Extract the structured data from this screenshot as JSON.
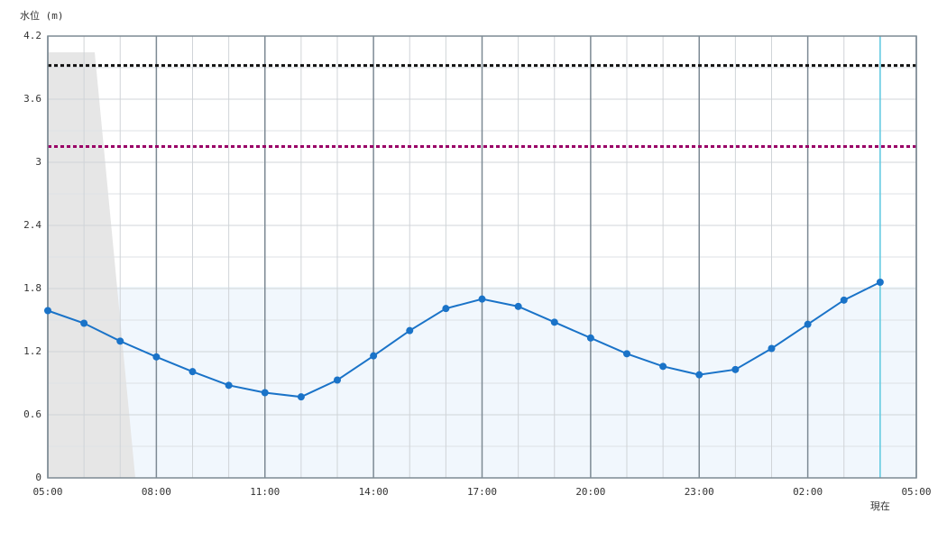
{
  "chart_data": {
    "type": "line",
    "y_label": "水位 (m)",
    "categories": [
      "05:00",
      null,
      null,
      "08:00",
      null,
      null,
      "11:00",
      null,
      null,
      "14:00",
      null,
      null,
      "17:00",
      null,
      null,
      "20:00",
      null,
      null,
      "23:00",
      null,
      null,
      "02:00",
      null,
      null,
      "05:00"
    ],
    "series": [
      {
        "color": "#1a73c8",
        "values": [
          1.59,
          1.47,
          1.3,
          1.15,
          1.01,
          0.88,
          0.81,
          0.77,
          0.93,
          1.16,
          1.4,
          1.61,
          1.7,
          1.63,
          1.48,
          1.33,
          1.18,
          1.06,
          0.98,
          1.03,
          1.23,
          1.46,
          1.69,
          1.86,
          null
        ]
      }
    ],
    "ylim": [
      0,
      4.2
    ],
    "yticks": [
      0,
      0.6,
      1.2,
      1.8,
      2.4,
      3,
      3.6,
      4.2
    ],
    "reference_lines": [
      {
        "value": 3.92,
        "color": "#111111"
      },
      {
        "value": 3.15,
        "color": "#990066"
      }
    ],
    "current_index": 23,
    "current_label": "現在",
    "current_color": "#5bc8e0",
    "grid": true
  }
}
